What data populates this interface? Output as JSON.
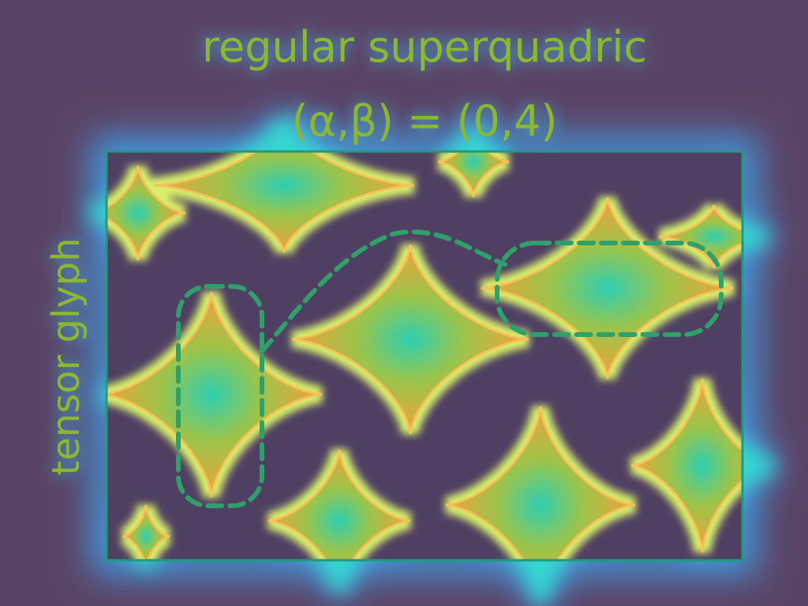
{
  "diagram": {
    "title_line1": "regular superquadric",
    "title_line2": "(α,β) = (0,4)",
    "y_axis_label": "tensor glyph",
    "glyph_shape": "superquadric-star",
    "colors": {
      "background": "#5a4466",
      "glow_outer": "#4d8ae0",
      "glow_mid": "#36d6d0",
      "glow_inner": "#8cf08a",
      "glyph_fill": "#f2a23a",
      "glyph_core": "#2ecfb0",
      "frame": "#1f9a7a",
      "dashed": "#2fa06a",
      "text": "#8cb830"
    }
  }
}
